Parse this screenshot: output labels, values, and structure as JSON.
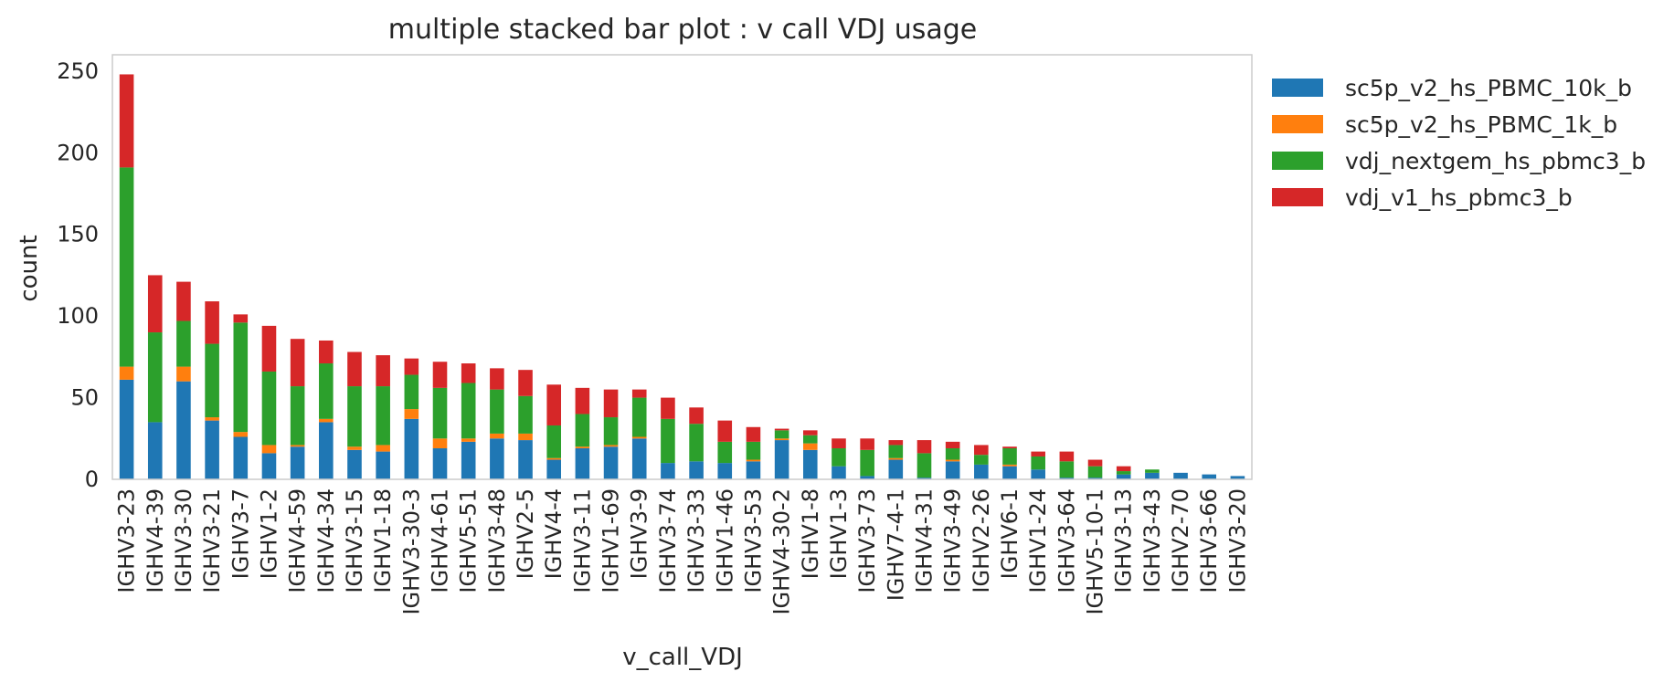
{
  "chart_data": {
    "type": "bar",
    "stacked": true,
    "title": "multiple stacked bar plot : v call VDJ usage",
    "xlabel": "v_call_VDJ",
    "ylabel": "count",
    "ylim": [
      0,
      260
    ],
    "yticks": [
      0,
      50,
      100,
      150,
      200,
      250
    ],
    "grid": false,
    "legend_position": "outside-right-top",
    "categories": [
      "IGHV3-23",
      "IGHV4-39",
      "IGHV3-30",
      "IGHV3-21",
      "IGHV3-7",
      "IGHV1-2",
      "IGHV4-59",
      "IGHV4-34",
      "IGHV3-15",
      "IGHV1-18",
      "IGHV3-30-3",
      "IGHV4-61",
      "IGHV5-51",
      "IGHV3-48",
      "IGHV2-5",
      "IGHV4-4",
      "IGHV3-11",
      "IGHV1-69",
      "IGHV3-9",
      "IGHV3-74",
      "IGHV3-33",
      "IGHV1-46",
      "IGHV3-53",
      "IGHV4-30-2",
      "IGHV1-8",
      "IGHV1-3",
      "IGHV3-73",
      "IGHV7-4-1",
      "IGHV4-31",
      "IGHV3-49",
      "IGHV2-26",
      "IGHV6-1",
      "IGHV1-24",
      "IGHV3-64",
      "IGHV5-10-1",
      "IGHV3-13",
      "IGHV3-43",
      "IGHV2-70",
      "IGHV3-66",
      "IGHV3-20"
    ],
    "series": [
      {
        "name": "sc5p_v2_hs_PBMC_10k_b",
        "color": "#1f77b4",
        "values": [
          61,
          35,
          60,
          36,
          26,
          16,
          20,
          35,
          18,
          17,
          37,
          19,
          23,
          25,
          24,
          12,
          19,
          20,
          25,
          10,
          11,
          10,
          11,
          24,
          18,
          8,
          2,
          12,
          1,
          11,
          9,
          8,
          6,
          1,
          1,
          3,
          4,
          4,
          3,
          2
        ]
      },
      {
        "name": "sc5p_v2_hs_PBMC_1k_b",
        "color": "#ff7f0e",
        "values": [
          8,
          0,
          9,
          2,
          3,
          5,
          1,
          2,
          2,
          4,
          6,
          6,
          2,
          3,
          4,
          1,
          1,
          1,
          1,
          0,
          0,
          0,
          1,
          1,
          4,
          0,
          0,
          1,
          0,
          1,
          0,
          1,
          0,
          0,
          0,
          0,
          0,
          0,
          0,
          0
        ]
      },
      {
        "name": "vdj_nextgem_hs_pbmc3_b",
        "color": "#2ca02c",
        "values": [
          122,
          55,
          28,
          45,
          67,
          45,
          36,
          34,
          37,
          36,
          21,
          31,
          34,
          27,
          23,
          20,
          20,
          17,
          24,
          27,
          23,
          13,
          11,
          5,
          5,
          11,
          16,
          8,
          15,
          7,
          6,
          10,
          8,
          10,
          7,
          2,
          2,
          0,
          0,
          0
        ]
      },
      {
        "name": "vdj_v1_hs_pbmc3_b",
        "color": "#d62728",
        "values": [
          57,
          35,
          24,
          26,
          5,
          28,
          29,
          14,
          21,
          19,
          10,
          16,
          12,
          13,
          16,
          25,
          16,
          17,
          5,
          13,
          10,
          13,
          9,
          1,
          3,
          6,
          7,
          3,
          8,
          4,
          6,
          1,
          3,
          6,
          4,
          3,
          0,
          0,
          0,
          0
        ]
      }
    ]
  }
}
